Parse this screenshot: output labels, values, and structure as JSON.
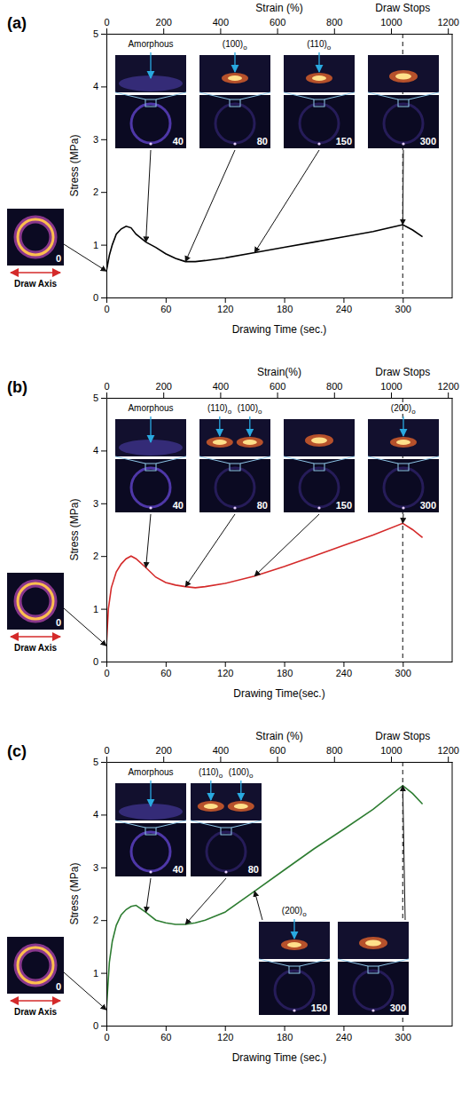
{
  "chart_data": [
    {
      "type": "line",
      "panel_label": "(a)",
      "color": "#000000",
      "x_label": "Drawing Time (sec.)",
      "x2_label": "Strain (%)",
      "y_label": "Stress (MPa)",
      "xlim": [
        0,
        350
      ],
      "xticks": [
        0,
        60,
        120,
        180,
        240,
        300
      ],
      "x2lim": [
        0,
        1215
      ],
      "x2ticks": [
        0,
        200,
        400,
        600,
        800,
        1000,
        1200
      ],
      "ylim": [
        0,
        5
      ],
      "yticks": [
        0,
        1,
        2,
        3,
        4,
        5
      ],
      "x": [
        0,
        3,
        6,
        10,
        15,
        20,
        25,
        30,
        40,
        50,
        60,
        70,
        80,
        90,
        100,
        120,
        150,
        180,
        210,
        240,
        270,
        300,
        310,
        320
      ],
      "values": [
        0.5,
        0.8,
        1.0,
        1.2,
        1.3,
        1.35,
        1.32,
        1.2,
        1.05,
        0.95,
        0.83,
        0.74,
        0.68,
        0.68,
        0.7,
        0.75,
        0.85,
        0.95,
        1.05,
        1.15,
        1.25,
        1.38,
        1.28,
        1.15
      ],
      "annotations": [
        {
          "text": "Draw Stops",
          "x": 300
        }
      ],
      "initial_pattern": {
        "time": 0,
        "label": "Draw Axis"
      },
      "insets": [
        {
          "time": 40,
          "peaks": [
            "Amorphous"
          ]
        },
        {
          "time": 80,
          "peaks": [
            "(100)o"
          ]
        },
        {
          "time": 150,
          "peaks": [
            "(110)o"
          ]
        },
        {
          "time": 300
        }
      ]
    },
    {
      "type": "line",
      "panel_label": "(b)",
      "color": "#d42a2a",
      "x_label": "Drawing Time(sec.)",
      "x2_label": "Strain(%)",
      "y_label": "Stress (MPa)",
      "xlim": [
        0,
        350
      ],
      "xticks": [
        0,
        60,
        120,
        180,
        240,
        300
      ],
      "x2lim": [
        0,
        1215
      ],
      "x2ticks": [
        0,
        200,
        400,
        600,
        800,
        1000,
        1200
      ],
      "ylim": [
        0,
        5
      ],
      "yticks": [
        0,
        1,
        2,
        3,
        4,
        5
      ],
      "x": [
        0,
        2,
        5,
        10,
        15,
        20,
        25,
        30,
        40,
        50,
        60,
        70,
        80,
        90,
        100,
        120,
        150,
        180,
        210,
        240,
        270,
        300,
        310,
        320
      ],
      "values": [
        0.3,
        1.0,
        1.4,
        1.7,
        1.85,
        1.95,
        2.0,
        1.95,
        1.78,
        1.6,
        1.5,
        1.45,
        1.42,
        1.4,
        1.42,
        1.48,
        1.62,
        1.8,
        2.0,
        2.2,
        2.4,
        2.62,
        2.5,
        2.35
      ],
      "annotations": [
        {
          "text": "Draw Stops",
          "x": 300
        }
      ],
      "initial_pattern": {
        "time": 0,
        "label": "Draw Axis"
      },
      "insets": [
        {
          "time": 40,
          "peaks": [
            "Amorphous"
          ]
        },
        {
          "time": 80,
          "peaks": [
            "(110)o",
            "(100)o"
          ]
        },
        {
          "time": 150
        },
        {
          "time": 300,
          "peaks": [
            "(200)o"
          ]
        }
      ]
    },
    {
      "type": "line",
      "panel_label": "(c)",
      "color": "#2e7d32",
      "x_label": "Drawing Time (sec.)",
      "x2_label": "Strain (%)",
      "y_label": "Stress (MPa)",
      "xlim": [
        0,
        350
      ],
      "xticks": [
        0,
        60,
        120,
        180,
        240,
        300
      ],
      "x2lim": [
        0,
        1215
      ],
      "x2ticks": [
        0,
        200,
        400,
        600,
        800,
        1000,
        1200
      ],
      "ylim": [
        0,
        5
      ],
      "yticks": [
        0,
        1,
        2,
        3,
        4,
        5
      ],
      "x": [
        0,
        3,
        6,
        10,
        15,
        20,
        25,
        30,
        40,
        50,
        60,
        70,
        80,
        90,
        100,
        120,
        150,
        180,
        210,
        240,
        270,
        300,
        310,
        320
      ],
      "values": [
        0.3,
        1.2,
        1.6,
        1.9,
        2.1,
        2.2,
        2.26,
        2.28,
        2.15,
        2.0,
        1.95,
        1.92,
        1.92,
        1.95,
        2.0,
        2.15,
        2.55,
        2.95,
        3.35,
        3.72,
        4.1,
        4.55,
        4.4,
        4.2
      ],
      "annotations": [
        {
          "text": "Draw Stops",
          "x": 300
        }
      ],
      "initial_pattern": {
        "time": 0,
        "label": "Draw Axis"
      },
      "insets": [
        {
          "time": 40,
          "peaks": [
            "Amorphous"
          ]
        },
        {
          "time": 80,
          "peaks": [
            "(110)o",
            "(100)o"
          ]
        },
        {
          "time": 150,
          "peaks": [
            "(200)o"
          ]
        },
        {
          "time": 300
        }
      ]
    }
  ]
}
